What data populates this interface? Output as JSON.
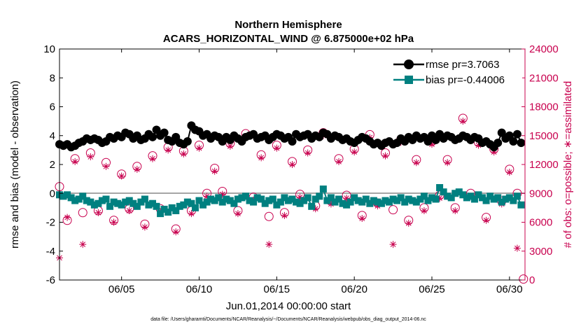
{
  "chart_data": {
    "type": "line",
    "title_lines": [
      "Northern Hemisphere",
      "ACARS_HORIZONTAL_WIND @ 6.875000e+02 hPa"
    ],
    "xlabel": "Jun.01,2014 00:00:00 start",
    "ylabel": "rmse and bias (model - observation)",
    "ylabel_right": "# of obs: o=possible; ∗=assimilated",
    "ylim": [
      -6,
      10
    ],
    "ylim_right": [
      0,
      24000
    ],
    "xlim": [
      1,
      31
    ],
    "yticks": [
      "10",
      "8",
      "6",
      "4",
      "2",
      "0",
      "-2",
      "-4",
      "-6"
    ],
    "yticks_right": [
      "24000",
      "21000",
      "18000",
      "15000",
      "12000",
      "9000",
      "6000",
      "3000",
      "0"
    ],
    "xticks": [
      {
        "day": 5,
        "label": "06/05"
      },
      {
        "day": 10,
        "label": "06/10"
      },
      {
        "day": 15,
        "label": "06/15"
      },
      {
        "day": 20,
        "label": "06/20"
      },
      {
        "day": 25,
        "label": "06/25"
      },
      {
        "day": 30,
        "label": "06/30"
      }
    ],
    "footnote": "data file: /Users/gharamti/Documents/NCAR/Reanalysis/~/Documents/NCAR/Reanalysis/webpub/obs_diag_output_2014-06.nc",
    "legend": [
      "rmse pr=3.7063",
      "bias pr=-0.44006"
    ],
    "series": [
      {
        "name": "rmse pr=3.7063",
        "color": "#000000",
        "x": [
          1.0,
          1.25,
          1.5,
          1.75,
          2.0,
          2.25,
          2.5,
          2.75,
          3.0,
          3.25,
          3.5,
          3.75,
          4.0,
          4.25,
          4.5,
          4.75,
          5.0,
          5.25,
          5.5,
          5.75,
          6.0,
          6.25,
          6.5,
          6.75,
          7.0,
          7.25,
          7.5,
          7.75,
          8.0,
          8.25,
          8.5,
          8.75,
          9.0,
          9.25,
          9.5,
          9.75,
          10.0,
          10.25,
          10.5,
          10.75,
          11.0,
          11.25,
          11.5,
          11.75,
          12.0,
          12.25,
          12.5,
          12.75,
          13.0,
          13.25,
          13.5,
          13.75,
          14.0,
          14.25,
          14.5,
          14.75,
          15.0,
          15.25,
          15.5,
          15.75,
          16.0,
          16.25,
          16.5,
          16.75,
          17.0,
          17.25,
          17.5,
          17.75,
          18.0,
          18.25,
          18.5,
          18.75,
          19.0,
          19.25,
          19.5,
          19.75,
          20.0,
          20.25,
          20.5,
          20.75,
          21.0,
          21.25,
          21.5,
          21.75,
          22.0,
          22.25,
          22.5,
          22.75,
          23.0,
          23.25,
          23.5,
          23.75,
          24.0,
          24.25,
          24.5,
          24.75,
          25.0,
          25.25,
          25.5,
          25.75,
          26.0,
          26.25,
          26.5,
          26.75,
          27.0,
          27.25,
          27.5,
          27.75,
          28.0,
          28.25,
          28.5,
          28.75,
          29.0,
          29.25,
          29.5,
          29.75,
          30.0,
          30.25,
          30.5,
          30.75
        ],
        "values": [
          3.4,
          3.3,
          3.4,
          3.2,
          3.3,
          3.5,
          3.6,
          3.8,
          3.7,
          3.8,
          3.7,
          3.5,
          3.6,
          3.9,
          3.8,
          4.0,
          3.9,
          4.2,
          4.1,
          3.8,
          4.0,
          3.7,
          3.8,
          4.1,
          3.9,
          4.4,
          4.0,
          4.2,
          3.7,
          3.6,
          3.9,
          3.5,
          3.4,
          3.6,
          4.7,
          4.4,
          4.3,
          4.0,
          4.1,
          3.8,
          4.0,
          3.9,
          3.6,
          3.9,
          3.7,
          4.0,
          3.8,
          3.6,
          3.9,
          4.0,
          4.1,
          3.8,
          3.9,
          4.0,
          3.7,
          3.9,
          4.1,
          4.0,
          3.8,
          3.9,
          3.6,
          4.1,
          3.9,
          4.0,
          4.1,
          3.8,
          4.0,
          3.9,
          4.2,
          4.1,
          3.8,
          4.0,
          3.9,
          3.7,
          3.8,
          3.6,
          3.5,
          3.7,
          3.9,
          3.8,
          3.6,
          3.4,
          3.5,
          3.3,
          3.5,
          3.6,
          3.4,
          3.5,
          3.8,
          3.6,
          3.9,
          3.7,
          4.0,
          3.8,
          3.9,
          3.6,
          4.0,
          3.7,
          4.1,
          3.8,
          4.0,
          3.9,
          3.7,
          3.8,
          4.0,
          3.9,
          3.7,
          3.9,
          3.8,
          3.5,
          3.6,
          3.4,
          3.2,
          3.5,
          4.2,
          3.8,
          4.0,
          3.6,
          4.1,
          3.5
        ],
        "marker": "circle"
      },
      {
        "name": "bias pr=-0.44006",
        "color": "#008080",
        "x": [
          1.0,
          1.25,
          1.5,
          1.75,
          2.0,
          2.25,
          2.5,
          2.75,
          3.0,
          3.25,
          3.5,
          3.75,
          4.0,
          4.25,
          4.5,
          4.75,
          5.0,
          5.25,
          5.5,
          5.75,
          6.0,
          6.25,
          6.5,
          6.75,
          7.0,
          7.25,
          7.5,
          7.75,
          8.0,
          8.25,
          8.5,
          8.75,
          9.0,
          9.25,
          9.5,
          9.75,
          10.0,
          10.25,
          10.5,
          10.75,
          11.0,
          11.25,
          11.5,
          11.75,
          12.0,
          12.25,
          12.5,
          12.75,
          13.0,
          13.25,
          13.5,
          13.75,
          14.0,
          14.25,
          14.5,
          14.75,
          15.0,
          15.25,
          15.5,
          15.75,
          16.0,
          16.25,
          16.5,
          16.75,
          17.0,
          17.25,
          17.5,
          17.75,
          18.0,
          18.25,
          18.5,
          18.75,
          19.0,
          19.25,
          19.5,
          19.75,
          20.0,
          20.25,
          20.5,
          20.75,
          21.0,
          21.25,
          21.5,
          21.75,
          22.0,
          22.25,
          22.5,
          22.75,
          23.0,
          23.25,
          23.5,
          23.75,
          24.0,
          24.25,
          24.5,
          24.75,
          25.0,
          25.25,
          25.5,
          25.75,
          26.0,
          26.25,
          26.5,
          26.75,
          27.0,
          27.25,
          27.5,
          27.75,
          28.0,
          28.25,
          28.5,
          28.75,
          29.0,
          29.25,
          29.5,
          29.75,
          30.0,
          30.25,
          30.5,
          30.75
        ],
        "values": [
          -0.1,
          -0.2,
          -0.1,
          -0.3,
          -0.5,
          -0.4,
          -0.2,
          -0.5,
          -0.6,
          -0.8,
          -0.7,
          -0.5,
          -0.4,
          -0.9,
          -0.6,
          -0.7,
          -0.8,
          -0.6,
          -0.5,
          -0.7,
          -0.9,
          -0.6,
          -0.4,
          -0.8,
          -0.7,
          -0.9,
          -1.4,
          -1.1,
          -1.3,
          -1.0,
          -1.2,
          -0.9,
          -0.8,
          -0.6,
          -0.7,
          -1.0,
          -0.5,
          -0.8,
          -0.6,
          -0.4,
          -0.5,
          -0.3,
          -0.6,
          -0.4,
          -0.5,
          -0.7,
          -0.4,
          -0.3,
          -0.2,
          -0.5,
          -0.6,
          -0.3,
          -0.4,
          -0.7,
          -0.5,
          -0.4,
          -0.8,
          -0.6,
          -0.3,
          -0.5,
          -0.4,
          -0.6,
          -0.7,
          -0.5,
          -0.3,
          -0.9,
          -0.4,
          -0.2,
          0.3,
          -0.5,
          -0.3,
          -0.6,
          -0.4,
          -0.7,
          -0.8,
          -0.6,
          -0.3,
          -0.5,
          -0.6,
          -0.4,
          -0.7,
          -0.5,
          -0.6,
          -0.7,
          -0.5,
          -0.6,
          -0.4,
          -0.5,
          -0.3,
          -0.6,
          -0.4,
          -0.5,
          -0.6,
          -0.4,
          -0.2,
          -0.5,
          -0.3,
          -0.4,
          0.4,
          0.1,
          -0.2,
          -0.3,
          0.0,
          0.1,
          -0.1,
          -0.3,
          -0.2,
          -0.4,
          -0.1,
          -0.3,
          -0.5,
          -0.2,
          -0.4,
          -0.3,
          -0.6,
          -0.4,
          -0.3,
          -0.5,
          -0.2,
          -0.8
        ],
        "marker": "square"
      },
      {
        "name": "possible",
        "color": "#c8004e",
        "axis": "right",
        "marker": "circle-open",
        "x": [
          1.0,
          1.5,
          2.0,
          2.5,
          3.0,
          3.5,
          4.0,
          4.5,
          5.0,
          5.5,
          6.0,
          6.5,
          7.0,
          7.5,
          8.0,
          8.5,
          9.0,
          9.5,
          10.0,
          10.5,
          11.0,
          11.5,
          12.0,
          12.5,
          13.0,
          13.5,
          14.0,
          14.5,
          15.0,
          15.5,
          16.0,
          16.5,
          17.0,
          17.5,
          18.0,
          18.5,
          19.0,
          19.5,
          20.0,
          20.5,
          21.0,
          21.5,
          22.0,
          22.5,
          23.0,
          23.5,
          24.0,
          24.5,
          25.0,
          25.5,
          26.0,
          26.5,
          27.0,
          27.5,
          28.0,
          28.5,
          29.0,
          29.5,
          30.0,
          30.5,
          30.9
        ],
        "values": [
          9700,
          6200,
          12600,
          7000,
          13200,
          7200,
          12200,
          6200,
          11000,
          7400,
          11800,
          5800,
          12900,
          7400,
          13800,
          5300,
          13400,
          7200,
          14000,
          9000,
          11600,
          9200,
          14200,
          7200,
          15200,
          8600,
          13000,
          6600,
          14000,
          7000,
          12300,
          8900,
          13500,
          7700,
          15300,
          8200,
          12600,
          8800,
          13600,
          6700,
          15100,
          8000,
          13200,
          7300,
          14600,
          6200,
          12500,
          7500,
          14400,
          8800,
          12500,
          7500,
          16800,
          9000,
          14300,
          6500,
          13600,
          8200,
          11500,
          9000,
          100
        ]
      },
      {
        "name": "assimilated",
        "color": "#c8004e",
        "axis": "right",
        "marker": "asterisk",
        "x": [
          1.0,
          1.5,
          2.0,
          2.5,
          3.0,
          3.5,
          4.0,
          4.5,
          5.0,
          5.5,
          6.0,
          6.5,
          7.0,
          7.5,
          8.0,
          8.5,
          9.0,
          9.5,
          10.0,
          10.5,
          11.0,
          11.5,
          12.0,
          12.5,
          13.0,
          13.5,
          14.0,
          14.5,
          15.0,
          15.5,
          16.0,
          16.5,
          17.0,
          17.5,
          18.0,
          18.5,
          19.0,
          19.5,
          20.0,
          20.5,
          21.0,
          21.5,
          22.0,
          22.5,
          23.0,
          23.5,
          24.0,
          24.5,
          25.0,
          25.5,
          26.0,
          26.5,
          27.0,
          27.5,
          28.0,
          28.5,
          29.0,
          29.5,
          30.0,
          30.5
        ],
        "values": [
          2300,
          6500,
          12300,
          3700,
          12800,
          7000,
          11800,
          6000,
          10800,
          7200,
          11500,
          5500,
          12600,
          7100,
          13500,
          5000,
          13100,
          6900,
          13700,
          8700,
          11300,
          8900,
          13900,
          6900,
          14900,
          8300,
          12700,
          3700,
          13700,
          6700,
          12000,
          8600,
          13200,
          7400,
          15000,
          7900,
          12300,
          8500,
          13300,
          6400,
          14800,
          7700,
          12900,
          3700,
          14300,
          5900,
          12200,
          7200,
          14100,
          8500,
          12200,
          7200,
          16500,
          8700,
          14000,
          6200,
          13300,
          7900,
          11200,
          3300
        ]
      }
    ]
  }
}
